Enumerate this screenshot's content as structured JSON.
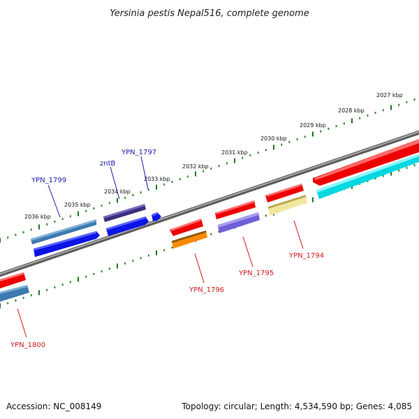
{
  "title": "Yersinia pestis Nepal516, complete genome",
  "footer": {
    "accession": "Accession: NC_008149",
    "topology": "Topology: circular; Length: 4,534,590 bp; Genes: 4,085"
  },
  "colors": {
    "backbone": "#8a8a8a",
    "tick_major": "#1f7a1f",
    "tick_minor": "#2e8b2e",
    "label_blue": "#1a1aaa",
    "label_red": "#cc1a1a"
  },
  "scale_ticks": [
    {
      "label": "2036 kbp",
      "kbp": 2036
    },
    {
      "label": "2035 kbp",
      "kbp": 2035
    },
    {
      "label": "2034 kbp",
      "kbp": 2034
    },
    {
      "label": "2033 kbp",
      "kbp": 2033
    },
    {
      "label": "2032 kbp",
      "kbp": 2032
    },
    {
      "label": "2031 kbp",
      "kbp": 2031
    },
    {
      "label": "2030 kbp",
      "kbp": 2030
    },
    {
      "label": "2029 kbp",
      "kbp": 2029
    },
    {
      "label": "2028 kbp",
      "kbp": 2028
    },
    {
      "label": "2027 kbp",
      "kbp": 2027
    }
  ],
  "gene_labels": [
    {
      "text": "YPN_1797",
      "strand": "top"
    },
    {
      "text": "zntB",
      "strand": "top"
    },
    {
      "text": "YPN_1799",
      "strand": "top"
    },
    {
      "text": "YPN_1796",
      "strand": "bottom"
    },
    {
      "text": "YPN_1795",
      "strand": "bottom"
    },
    {
      "text": "YPN_1794",
      "strand": "bottom"
    },
    {
      "text": "YPN_1800",
      "strand": "bottom"
    }
  ]
}
